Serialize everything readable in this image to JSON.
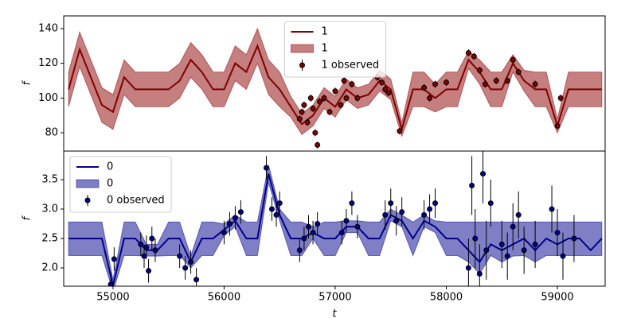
{
  "chart_data": [
    {
      "type": "line",
      "ylabel": "f",
      "legend": "upper center",
      "xlim": [
        54556,
        59430
      ],
      "ylim": [
        69.5,
        147.3
      ],
      "yticks": [
        80,
        100,
        120,
        140
      ],
      "x": [
        54600,
        54700,
        54800,
        54900,
        55000,
        55100,
        55200,
        55300,
        55400,
        55500,
        55600,
        55700,
        55800,
        55900,
        56000,
        56100,
        56200,
        56300,
        56400,
        56500,
        56600,
        56700,
        56800,
        56900,
        57000,
        57100,
        57200,
        57300,
        57400,
        57500,
        57600,
        57700,
        57800,
        57900,
        58000,
        58100,
        58200,
        58300,
        58400,
        58500,
        58600,
        58700,
        58800,
        58900,
        59000,
        59100,
        59200,
        59300,
        59400
      ],
      "series": [
        {
          "type": "line",
          "name": "1",
          "color": "#800000",
          "values": [
            105,
            128,
            112,
            96,
            92,
            112,
            105,
            105,
            105,
            105,
            110,
            122,
            115,
            105,
            105,
            120,
            115,
            130,
            112,
            105,
            95,
            85,
            90,
            100,
            95,
            105,
            100,
            102,
            110,
            105,
            82,
            105,
            105,
            100,
            105,
            105,
            122,
            115,
            105,
            105,
            120,
            110,
            105,
            105,
            84,
            105,
            105,
            105,
            105
          ]
        },
        {
          "type": "band",
          "name": "1",
          "color": "#8b0000",
          "lower": [
            95,
            118,
            102,
            86,
            82,
            102,
            95,
            95,
            95,
            95,
            100,
            112,
            105,
            95,
            95,
            110,
            105,
            120,
            102,
            95,
            89,
            79,
            84,
            94,
            89,
            99,
            94,
            96,
            104,
            99,
            78,
            95,
            95,
            92,
            95,
            95,
            117,
            108,
            95,
            95,
            115,
            104,
            95,
            95,
            80,
            95,
            95,
            95,
            95
          ],
          "upper": [
            115,
            138,
            122,
            106,
            102,
            122,
            115,
            115,
            115,
            115,
            120,
            132,
            125,
            115,
            115,
            130,
            125,
            140,
            122,
            115,
            101,
            91,
            96,
            106,
            101,
            111,
            106,
            108,
            116,
            111,
            86,
            115,
            115,
            108,
            115,
            115,
            127,
            122,
            115,
            115,
            125,
            116,
            115,
            115,
            88,
            115,
            115,
            115,
            115
          ]
        },
        {
          "type": "errorbar",
          "name": "1 observed",
          "color": "#800000",
          "x": [
            56680,
            56700,
            56720,
            56750,
            56780,
            56800,
            56820,
            56840,
            56860,
            56900,
            56950,
            57000,
            57050,
            57080,
            57100,
            57150,
            57200,
            57380,
            57420,
            57450,
            57480,
            57580,
            57800,
            57850,
            57900,
            58000,
            58200,
            58250,
            58300,
            58350,
            58450,
            58550,
            58600,
            58650,
            58800,
            59000,
            59030
          ],
          "values": [
            88,
            92,
            96,
            86,
            100,
            94,
            80,
            73,
            98,
            100,
            92,
            104,
            96,
            110,
            100,
            108,
            100,
            112,
            109,
            105,
            103,
            81,
            106,
            100,
            108,
            109,
            126,
            124,
            116,
            108,
            110,
            110,
            122,
            115,
            108,
            84,
            100
          ],
          "errors": [
            2,
            2,
            2,
            2,
            2,
            2,
            2,
            2,
            2,
            2,
            2,
            2,
            2,
            2,
            2,
            2,
            2,
            2,
            2,
            2,
            2,
            2,
            2,
            2,
            2,
            2,
            2,
            2,
            2,
            2,
            2,
            2,
            2,
            2,
            2,
            2,
            2
          ]
        }
      ]
    },
    {
      "type": "line",
      "ylabel": "f",
      "xlabel": "t",
      "legend": "upper left",
      "xlim": [
        54556,
        59430
      ],
      "xticks": [
        55000,
        56000,
        57000,
        58000,
        59000
      ],
      "ylim": [
        1.689,
        3.986
      ],
      "yticks": [
        {
          "value": 2.0,
          "label": "2.0"
        },
        2.5,
        {
          "value": 3.0,
          "label": "3.0"
        },
        3.5
      ],
      "x": [
        54600,
        54700,
        54800,
        54900,
        55000,
        55100,
        55200,
        55300,
        55400,
        55500,
        55600,
        55700,
        55800,
        55900,
        56000,
        56100,
        56200,
        56300,
        56400,
        56500,
        56600,
        56700,
        56800,
        56900,
        57000,
        57100,
        57200,
        57300,
        57400,
        57500,
        57600,
        57700,
        57800,
        57900,
        58000,
        58100,
        58200,
        58300,
        58400,
        58500,
        58600,
        58700,
        58800,
        58900,
        59000,
        59100,
        59200,
        59300,
        59400
      ],
      "series": [
        {
          "type": "line",
          "name": "0",
          "color": "#00008b",
          "values": [
            2.5,
            2.5,
            2.5,
            2.5,
            1.7,
            2.5,
            2.5,
            2.3,
            2.3,
            2.5,
            2.5,
            2.1,
            2.5,
            2.5,
            2.65,
            2.8,
            2.5,
            2.5,
            3.6,
            2.9,
            2.5,
            2.5,
            2.6,
            2.5,
            2.5,
            2.7,
            2.7,
            2.5,
            2.5,
            2.9,
            2.8,
            2.5,
            2.8,
            2.7,
            2.5,
            2.5,
            2.3,
            2.1,
            2.4,
            2.3,
            2.4,
            2.5,
            2.3,
            2.5,
            2.4,
            2.5,
            2.5,
            2.3,
            2.5
          ]
        },
        {
          "type": "band",
          "name": "0",
          "color": "#00008b",
          "lower": [
            2.21,
            2.21,
            2.21,
            2.21,
            1.6,
            2.21,
            2.21,
            2.2,
            2.2,
            2.21,
            2.21,
            2.0,
            2.21,
            2.21,
            2.55,
            2.7,
            2.21,
            2.21,
            3.45,
            2.8,
            2.21,
            2.21,
            2.5,
            2.21,
            2.21,
            2.6,
            2.6,
            2.21,
            2.21,
            2.8,
            2.7,
            2.21,
            2.7,
            2.6,
            2.21,
            2.21,
            2.1,
            1.9,
            2.21,
            2.1,
            2.2,
            2.21,
            2.1,
            2.21,
            2.21,
            2.21,
            2.21,
            2.21,
            2.21
          ],
          "upper": [
            2.78,
            2.78,
            2.78,
            2.78,
            1.8,
            2.78,
            2.78,
            2.4,
            2.4,
            2.78,
            2.78,
            2.2,
            2.78,
            2.78,
            2.75,
            2.9,
            2.78,
            2.78,
            3.75,
            3.0,
            2.78,
            2.78,
            2.7,
            2.78,
            2.78,
            2.8,
            2.8,
            2.78,
            2.78,
            3.0,
            2.9,
            2.78,
            2.9,
            2.8,
            2.78,
            2.78,
            2.78,
            2.78,
            2.78,
            2.78,
            2.78,
            2.78,
            2.78,
            2.78,
            2.78,
            2.78,
            2.78,
            2.78,
            2.78
          ]
        },
        {
          "type": "errorbar",
          "name": "0 observed",
          "color": "#00008b",
          "x": [
            54980,
            55010,
            55250,
            55280,
            55300,
            55320,
            55350,
            55380,
            55600,
            55650,
            55700,
            55750,
            56000,
            56050,
            56100,
            56150,
            56380,
            56430,
            56470,
            56500,
            56680,
            56720,
            56760,
            56800,
            56840,
            57060,
            57100,
            57150,
            57200,
            57450,
            57500,
            57550,
            57600,
            57800,
            57850,
            57900,
            58200,
            58230,
            58260,
            58300,
            58330,
            58360,
            58400,
            58500,
            58550,
            58600,
            58650,
            58700,
            58800,
            58950,
            59000,
            59050,
            59150
          ],
          "values": [
            1.72,
            2.15,
            2.4,
            2.2,
            2.35,
            1.95,
            2.5,
            2.3,
            2.2,
            2.0,
            2.1,
            1.8,
            2.6,
            2.75,
            2.85,
            2.95,
            3.7,
            3.0,
            2.9,
            3.1,
            2.3,
            2.5,
            2.7,
            2.6,
            2.75,
            2.6,
            2.8,
            3.1,
            2.7,
            2.9,
            3.1,
            2.8,
            2.95,
            2.9,
            3.0,
            3.1,
            2.0,
            3.4,
            2.5,
            1.9,
            3.6,
            2.3,
            3.1,
            2.4,
            2.2,
            2.7,
            2.9,
            2.3,
            2.4,
            3.0,
            2.6,
            2.2,
            2.5
          ],
          "errors": [
            0.2,
            0.2,
            0.2,
            0.2,
            0.2,
            0.2,
            0.2,
            0.2,
            0.2,
            0.2,
            0.2,
            0.2,
            0.2,
            0.2,
            0.2,
            0.2,
            0.2,
            0.2,
            0.2,
            0.2,
            0.2,
            0.2,
            0.2,
            0.2,
            0.2,
            0.2,
            0.2,
            0.2,
            0.2,
            0.25,
            0.25,
            0.25,
            0.25,
            0.25,
            0.25,
            0.25,
            0.5,
            0.5,
            0.5,
            0.5,
            0.5,
            0.5,
            0.4,
            0.4,
            0.4,
            0.4,
            0.4,
            0.4,
            0.4,
            0.4,
            0.4,
            0.4,
            0.4
          ]
        }
      ]
    }
  ]
}
